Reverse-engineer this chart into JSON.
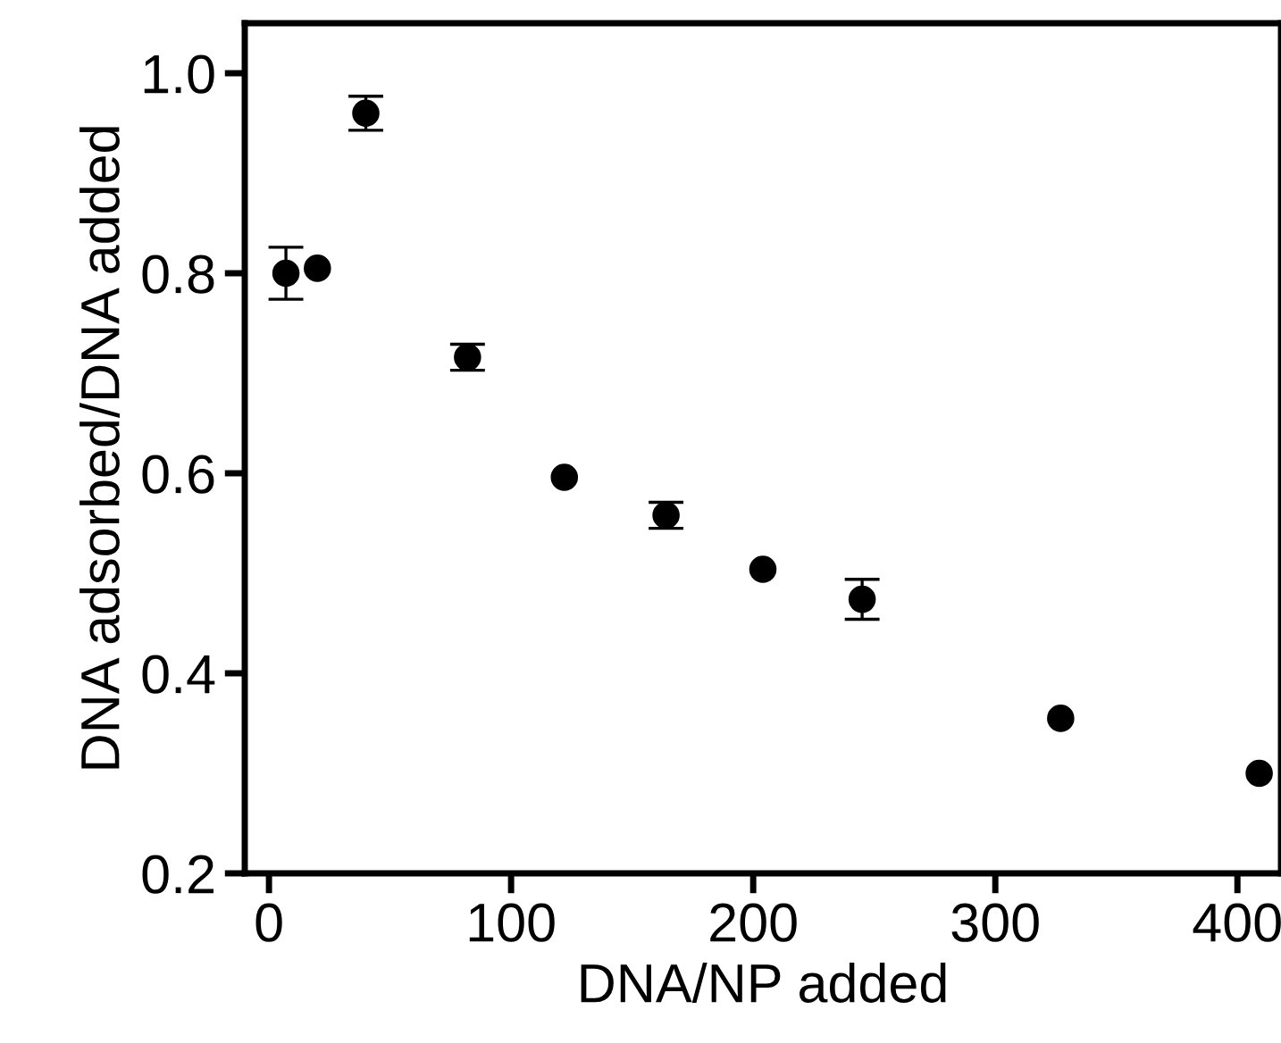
{
  "chart_data": {
    "type": "scatter",
    "xlabel": "DNA/NP added",
    "ylabel": "DNA adsorbed/DNA added",
    "x": [
      7,
      20,
      40,
      82,
      122,
      164,
      204,
      245,
      327,
      409
    ],
    "series": [
      {
        "color": "#000000",
        "values": [
          0.8,
          0.805,
          0.96,
          0.716,
          0.596,
          0.558,
          0.504,
          0.474,
          0.355,
          0.3
        ],
        "errors": [
          0.026,
          null,
          0.017,
          0.013,
          null,
          0.013,
          null,
          0.02,
          null,
          null
        ]
      }
    ],
    "xlim": [
      -10,
      418
    ],
    "ylim": [
      0.2,
      1.05
    ],
    "xticks": [
      0,
      100,
      200,
      300,
      400
    ],
    "yticks": [
      0.2,
      0.4,
      0.6,
      0.8,
      {
        "value": 1,
        "label": "1.0"
      }
    ],
    "marker": "circle",
    "grid": false,
    "legend": false
  }
}
